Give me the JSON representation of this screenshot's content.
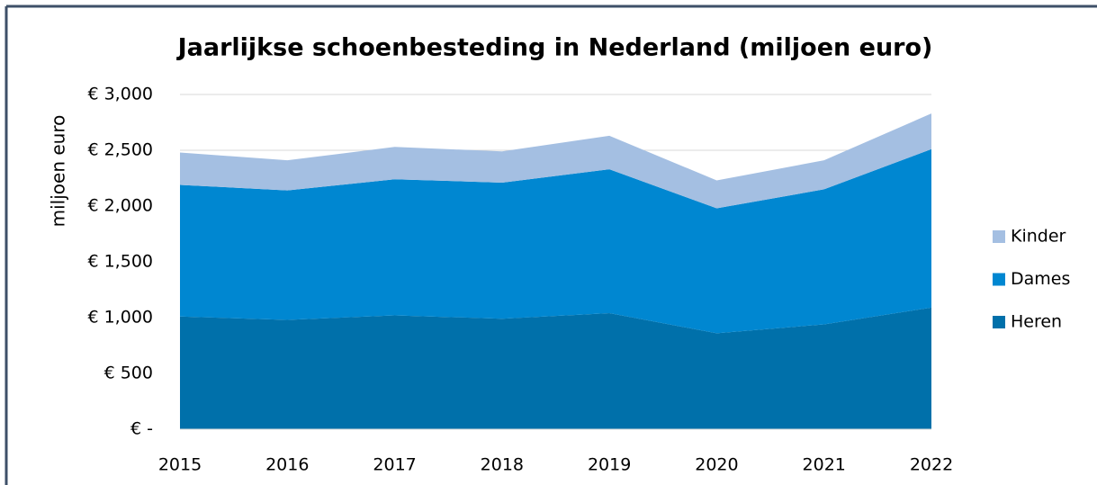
{
  "chart_data": {
    "type": "stacked_area",
    "title": "Jaarlijkse schoenbesteding in Nederland (miljoen euro)",
    "y_label": "miljoen euro",
    "categories": [
      "2015",
      "2016",
      "2017",
      "2018",
      "2019",
      "2020",
      "2021",
      "2022"
    ],
    "series": [
      {
        "name": "Heren",
        "color": "#0070aa",
        "values": [
          1010,
          980,
          1020,
          990,
          1040,
          860,
          940,
          1090
        ]
      },
      {
        "name": "Dames",
        "color": "#0087d1",
        "values": [
          1180,
          1160,
          1220,
          1220,
          1290,
          1120,
          1210,
          1420
        ]
      },
      {
        "name": "Kinder",
        "color": "#a4bfe2",
        "values": [
          290,
          270,
          290,
          280,
          300,
          250,
          260,
          320
        ]
      }
    ],
    "ylim": [
      0,
      3000
    ],
    "yticks": [
      {
        "value": 0,
        "label": "€ -"
      },
      {
        "value": 500,
        "label": "€ 500"
      },
      {
        "value": 1000,
        "label": "€ 1,000"
      },
      {
        "value": 1500,
        "label": "€ 1,500"
      },
      {
        "value": 2000,
        "label": "€ 2,000"
      },
      {
        "value": 2500,
        "label": "€ 2,500"
      },
      {
        "value": 3000,
        "label": "€ 3,000"
      }
    ],
    "grid": true,
    "legend": "right"
  }
}
